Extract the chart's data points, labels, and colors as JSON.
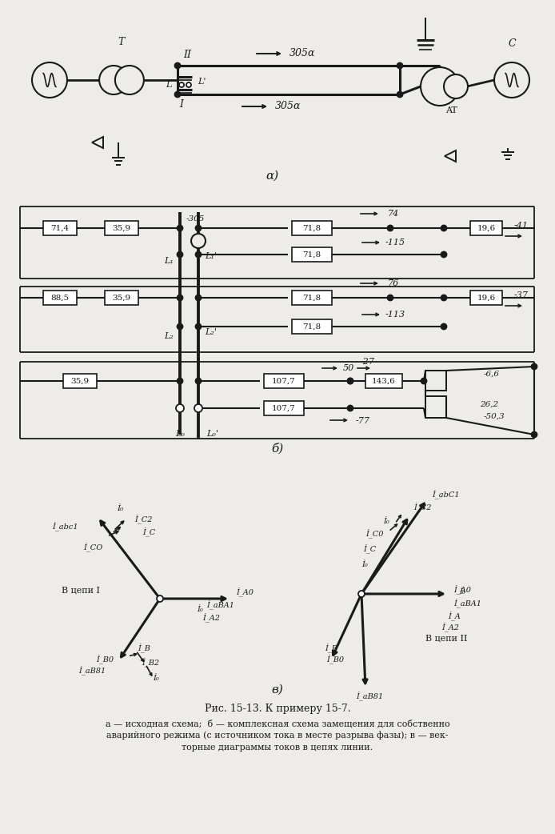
{
  "bg_color": "#eeece8",
  "line_color": "#1a1a1a",
  "caption_main": "Рис. 15-13. К примеру 15-7.",
  "caption1": "а — исходная схема;  б — комплексная схема замещения для собственно",
  "caption2": "аварийного режима (с источником тока в месте разрыва фазы); в — век-",
  "caption3": "торные диаграммы токов в цепях линии."
}
